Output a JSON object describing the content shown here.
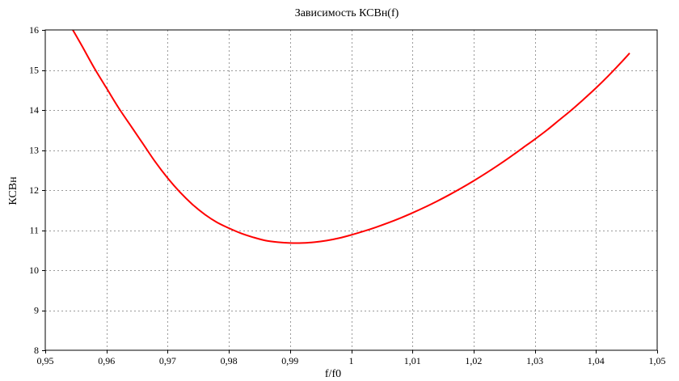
{
  "chart_data": {
    "type": "line",
    "title": "Зависимость КСВн(f)",
    "xlabel": "f/f0",
    "ylabel": "КСВн",
    "xlim": [
      0.95,
      1.05
    ],
    "ylim": [
      8,
      16
    ],
    "x_ticks": [
      0.95,
      0.96,
      0.97,
      0.98,
      0.99,
      1.0,
      1.01,
      1.02,
      1.03,
      1.04,
      1.05
    ],
    "x_tick_labels": [
      "0,95",
      "0,96",
      "0,97",
      "0,98",
      "0,99",
      "1",
      "1,01",
      "1,02",
      "1,03",
      "1,04",
      "1,05"
    ],
    "y_ticks": [
      8,
      9,
      10,
      11,
      12,
      13,
      14,
      15,
      16
    ],
    "y_tick_labels": [
      "8",
      "9",
      "10",
      "11",
      "12",
      "13",
      "14",
      "15",
      "16"
    ],
    "grid": true,
    "series": [
      {
        "color": "#ff0000",
        "x": [
          0.9545,
          0.956,
          0.958,
          0.96,
          0.962,
          0.964,
          0.966,
          0.968,
          0.97,
          0.972,
          0.974,
          0.976,
          0.978,
          0.98,
          0.982,
          0.984,
          0.986,
          0.988,
          0.99,
          0.992,
          0.994,
          0.996,
          0.998,
          1.0,
          1.002,
          1.004,
          1.006,
          1.008,
          1.01,
          1.012,
          1.014,
          1.016,
          1.018,
          1.02,
          1.022,
          1.024,
          1.026,
          1.028,
          1.03,
          1.032,
          1.034,
          1.036,
          1.038,
          1.04,
          1.042,
          1.044,
          1.0455
        ],
        "y": [
          16.0,
          15.6,
          15.05,
          14.55,
          14.05,
          13.6,
          13.15,
          12.7,
          12.3,
          11.95,
          11.65,
          11.4,
          11.2,
          11.05,
          10.92,
          10.82,
          10.74,
          10.7,
          10.68,
          10.68,
          10.7,
          10.74,
          10.8,
          10.88,
          10.97,
          11.07,
          11.18,
          11.3,
          11.43,
          11.57,
          11.72,
          11.88,
          12.05,
          12.23,
          12.42,
          12.62,
          12.83,
          13.05,
          13.27,
          13.5,
          13.75,
          14.0,
          14.27,
          14.55,
          14.85,
          15.17,
          15.42
        ]
      }
    ]
  }
}
